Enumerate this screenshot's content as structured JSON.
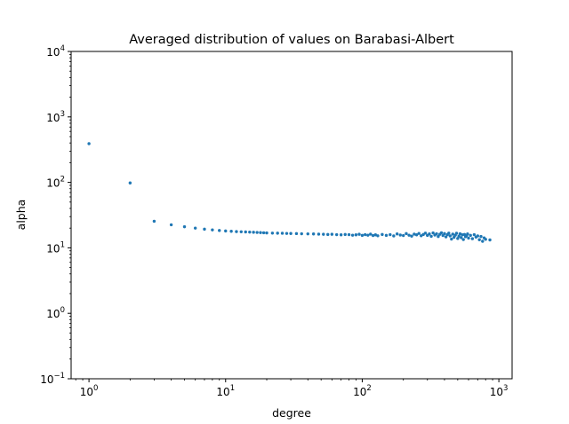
{
  "chart_data": {
    "type": "scatter",
    "title": "Averaged distribution of values on Barabasi-Albert",
    "xlabel": "degree",
    "ylabel": "alpha",
    "xscale": "log",
    "yscale": "log",
    "xlim": [
      0.74,
      1250
    ],
    "ylim": [
      0.1,
      10000
    ],
    "grid": false,
    "marker_color": "#1f77b4",
    "x_ticks": [
      {
        "value": 1,
        "base": "10",
        "exp": "0"
      },
      {
        "value": 10,
        "base": "10",
        "exp": "1"
      },
      {
        "value": 100,
        "base": "10",
        "exp": "2"
      },
      {
        "value": 1000,
        "base": "10",
        "exp": "3"
      }
    ],
    "y_ticks": [
      {
        "value": 0.1,
        "base": "10",
        "exp": "−1"
      },
      {
        "value": 1,
        "base": "10",
        "exp": "0"
      },
      {
        "value": 10,
        "base": "10",
        "exp": "1"
      },
      {
        "value": 100,
        "base": "10",
        "exp": "2"
      },
      {
        "value": 1000,
        "base": "10",
        "exp": "3"
      },
      {
        "value": 10000,
        "base": "10",
        "exp": "4"
      }
    ],
    "series": [
      {
        "points": [
          [
            1,
            390
          ],
          [
            2,
            98
          ],
          [
            3,
            25.5
          ],
          [
            4,
            22.5
          ],
          [
            5,
            21
          ],
          [
            6,
            20
          ],
          [
            7,
            19.3
          ],
          [
            8,
            18.8
          ],
          [
            9,
            18.4
          ],
          [
            10,
            18.1
          ],
          [
            11,
            17.9
          ],
          [
            12,
            17.7
          ],
          [
            13,
            17.6
          ],
          [
            14,
            17.5
          ],
          [
            15,
            17.4
          ],
          [
            16,
            17.3
          ],
          [
            17,
            17.2
          ],
          [
            18,
            17.1
          ],
          [
            19,
            17.0
          ],
          [
            20,
            16.9
          ],
          [
            22,
            16.8
          ],
          [
            24,
            16.75
          ],
          [
            26,
            16.7
          ],
          [
            28,
            16.6
          ],
          [
            30,
            16.55
          ],
          [
            33,
            16.5
          ],
          [
            36,
            16.4
          ],
          [
            40,
            16.35
          ],
          [
            44,
            16.3
          ],
          [
            48,
            16.2
          ],
          [
            52,
            16.1
          ],
          [
            56,
            16.0
          ],
          [
            60,
            16.1
          ],
          [
            65,
            15.9
          ],
          [
            70,
            15.8
          ],
          [
            75,
            16.0
          ],
          [
            80,
            15.9
          ],
          [
            85,
            15.6
          ],
          [
            90,
            15.8
          ],
          [
            95,
            16.1
          ],
          [
            100,
            15.5
          ],
          [
            105,
            15.9
          ],
          [
            110,
            15.6
          ],
          [
            115,
            16.2
          ],
          [
            120,
            15.4
          ],
          [
            125,
            15.8
          ],
          [
            130,
            15.3
          ],
          [
            140,
            16.0
          ],
          [
            150,
            15.5
          ],
          [
            160,
            15.9
          ],
          [
            170,
            15.2
          ],
          [
            180,
            16.3
          ],
          [
            190,
            15.7
          ],
          [
            200,
            15.4
          ],
          [
            210,
            16.5
          ],
          [
            220,
            15.6
          ],
          [
            230,
            15.1
          ],
          [
            240,
            16.2
          ],
          [
            250,
            15.8
          ],
          [
            260,
            16.6
          ],
          [
            270,
            15.3
          ],
          [
            280,
            16.0
          ],
          [
            290,
            16.8
          ],
          [
            300,
            15.5
          ],
          [
            310,
            16.3
          ],
          [
            320,
            15.0
          ],
          [
            330,
            16.9
          ],
          [
            340,
            15.7
          ],
          [
            350,
            16.4
          ],
          [
            360,
            14.9
          ],
          [
            370,
            16.1
          ],
          [
            380,
            17.0
          ],
          [
            390,
            15.4
          ],
          [
            400,
            16.5
          ],
          [
            410,
            14.7
          ],
          [
            420,
            15.9
          ],
          [
            430,
            16.8
          ],
          [
            440,
            15.2
          ],
          [
            450,
            13.6
          ],
          [
            460,
            16.2
          ],
          [
            470,
            14.5
          ],
          [
            480,
            15.6
          ],
          [
            490,
            16.7
          ],
          [
            500,
            13.9
          ],
          [
            510,
            15.1
          ],
          [
            520,
            16.4
          ],
          [
            530,
            14.3
          ],
          [
            540,
            15.8
          ],
          [
            550,
            13.4
          ],
          [
            560,
            16.0
          ],
          [
            570,
            14.8
          ],
          [
            580,
            15.3
          ],
          [
            590,
            16.3
          ],
          [
            600,
            14.1
          ],
          [
            620,
            15.5
          ],
          [
            640,
            13.8
          ],
          [
            660,
            15.9
          ],
          [
            680,
            14.6
          ],
          [
            700,
            15.2
          ],
          [
            720,
            13.3
          ],
          [
            740,
            14.9
          ],
          [
            760,
            12.6
          ],
          [
            780,
            14.2
          ],
          [
            800,
            13.5
          ],
          [
            860,
            13.2
          ]
        ]
      }
    ]
  }
}
